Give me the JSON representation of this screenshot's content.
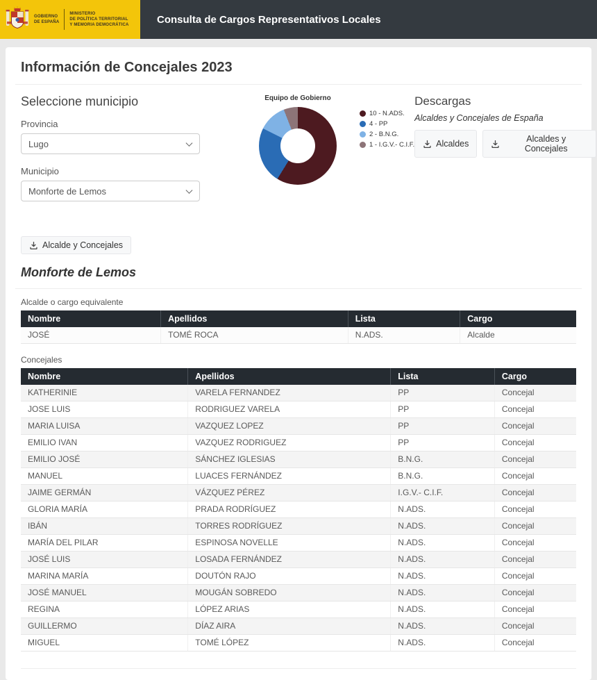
{
  "header": {
    "logo_gobierno": "GOBIERNO\nDE ESPAÑA",
    "logo_ministerio": "MINISTERIO\nDE POLÍTICA TERRITORIAL\nY MEMORIA DEMOCRÁTICA",
    "title": "Consulta de Cargos Representativos Locales"
  },
  "page": {
    "title": "Información de Concejales 2023"
  },
  "selector": {
    "heading": "Seleccione municipio",
    "provincia_label": "Provincia",
    "provincia_value": "Lugo",
    "municipio_label": "Municipio",
    "municipio_value": "Monforte de Lemos",
    "download_button": "Alcalde y Concejales"
  },
  "chart_data": {
    "type": "pie",
    "donut": true,
    "title": "Equipo de Gobierno",
    "legend_position": "right",
    "series": [
      {
        "label": "10 - N.ADS.",
        "name": "N.ADS.",
        "value": 10,
        "color": "#4d1a20"
      },
      {
        "label": "4 - PP",
        "name": "PP",
        "value": 4,
        "color": "#2a6cb5"
      },
      {
        "label": "2 - B.N.G.",
        "name": "B.N.G.",
        "value": 2,
        "color": "#7fb2e5"
      },
      {
        "label": "1 - I.G.V.- C.I.F.",
        "name": "I.G.V.- C.I.F.",
        "value": 1,
        "color": "#8d7478"
      }
    ]
  },
  "descargas": {
    "heading": "Descargas",
    "subtitle": "Alcaldes y Concejales de España",
    "button_alcaldes": "Alcaldes",
    "button_alcaldes_concejales": "Alcaldes y Concejales"
  },
  "municipality_heading": "Monforte de Lemos",
  "alcalde_table": {
    "label": "Alcalde o cargo equivalente",
    "headers": [
      "Nombre",
      "Apellidos",
      "Lista",
      "Cargo"
    ],
    "rows": [
      [
        "JOSÉ",
        "TOMÉ ROCA",
        "N.ADS.",
        "Alcalde"
      ]
    ]
  },
  "concejales_table": {
    "label": "Concejales",
    "headers": [
      "Nombre",
      "Apellidos",
      "Lista",
      "Cargo"
    ],
    "rows": [
      [
        "KATHERINIE",
        "VARELA FERNANDEZ",
        "PP",
        "Concejal"
      ],
      [
        "JOSE LUIS",
        "RODRIGUEZ VARELA",
        "PP",
        "Concejal"
      ],
      [
        "MARIA LUISA",
        "VAZQUEZ LOPEZ",
        "PP",
        "Concejal"
      ],
      [
        "EMILIO IVAN",
        "VAZQUEZ RODRIGUEZ",
        "PP",
        "Concejal"
      ],
      [
        "EMILIO JOSÉ",
        "SÁNCHEZ IGLESIAS",
        "B.N.G.",
        "Concejal"
      ],
      [
        "MANUEL",
        "LUACES FERNÁNDEZ",
        "B.N.G.",
        "Concejal"
      ],
      [
        "JAIME GERMÁN",
        "VÁZQUEZ PÉREZ",
        "I.G.V.- C.I.F.",
        "Concejal"
      ],
      [
        "GLORIA MARÍA",
        "PRADA RODRÍGUEZ",
        "N.ADS.",
        "Concejal"
      ],
      [
        "IBÁN",
        "TORRES RODRÍGUEZ",
        "N.ADS.",
        "Concejal"
      ],
      [
        "MARÍA DEL PILAR",
        "ESPINOSA NOVELLE",
        "N.ADS.",
        "Concejal"
      ],
      [
        "JOSÉ LUIS",
        "LOSADA FERNÁNDEZ",
        "N.ADS.",
        "Concejal"
      ],
      [
        "MARINA MARÍA",
        "DOUTÓN RAJO",
        "N.ADS.",
        "Concejal"
      ],
      [
        "JOSÉ MANUEL",
        "MOUGÁN SOBREDO",
        "N.ADS.",
        "Concejal"
      ],
      [
        "REGINA",
        "LÓPEZ ARIAS",
        "N.ADS.",
        "Concejal"
      ],
      [
        "GUILLERMO",
        "DÍAZ AIRA",
        "N.ADS.",
        "Concejal"
      ],
      [
        "MIGUEL",
        "TOMÉ LÓPEZ",
        "N.ADS.",
        "Concejal"
      ]
    ]
  },
  "colors": {
    "header_bg": "#343a40",
    "logo_bg": "#f3c50a",
    "table_header_bg": "#252b31",
    "row_stripe": "#f4f4f4"
  }
}
